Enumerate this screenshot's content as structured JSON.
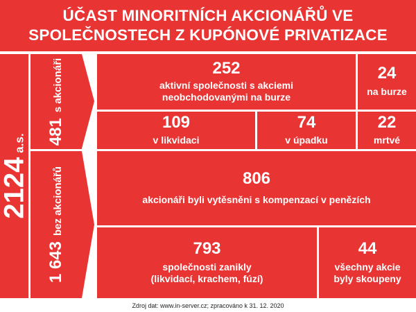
{
  "title": {
    "line1": "ÚČAST MINORITNÍCH AKCIONÁŘŮ VE",
    "line2": "SPOLEČNOSTECH Z KUPÓNOVÉ PRIVATIZACE"
  },
  "total": {
    "value": "2124",
    "unit": "a.s."
  },
  "with_shareholders": {
    "value": "481",
    "label": "s akcionáři"
  },
  "without_shareholders": {
    "value": "1 643",
    "label": "bez akcionářů"
  },
  "active": {
    "value": "252",
    "label_line1": "aktivní společnosti s akciemi",
    "label_line2": "neobchodovanými na burze"
  },
  "on_exchange": {
    "value": "24",
    "label": "na burze"
  },
  "liquidation": {
    "value": "109",
    "label": "v likvidaci"
  },
  "decline": {
    "value": "74",
    "label": "v úpadku"
  },
  "dead": {
    "value": "22",
    "label": "mrtvé"
  },
  "squeezed_out": {
    "value": "806",
    "label": "akcionáři byli vytěsněni s kompenzací v penězích"
  },
  "defunct": {
    "value": "793",
    "label_line1": "společnosti zanikly",
    "label_line2": "(likvidací, krachem, fúzí)"
  },
  "bought_out": {
    "value": "44",
    "label_line1": "všechny akcie",
    "label_line2": "byly skoupeny"
  },
  "footer": "Zdroj dat: www.in-server.cz; zpracováno k 31. 12. 2020",
  "colors": {
    "accent": "#e93434",
    "background": "#ffffff"
  }
}
